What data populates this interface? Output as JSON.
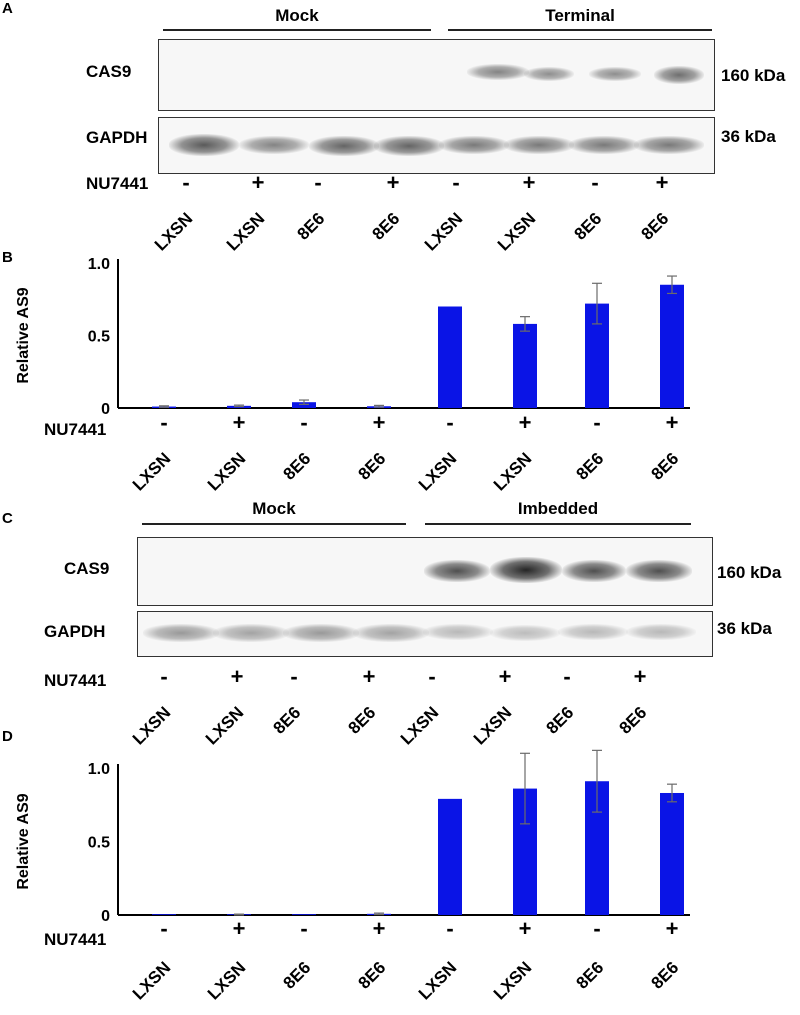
{
  "panels": {
    "a": {
      "letter": "A",
      "group1": "Mock",
      "group2": "Terminal",
      "top_protein": "CAS9",
      "bottom_protein": "GAPDH",
      "top_kda": "160 kDa",
      "bottom_kda": "36 kDa"
    },
    "b": {
      "letter": "B"
    },
    "c": {
      "letter": "C",
      "group1": "Mock",
      "group2": "Imbedded",
      "top_protein": "CAS9",
      "bottom_protein": "GAPDH",
      "top_kda": "160 kDa",
      "bottom_kda": "36 kDa"
    },
    "d": {
      "letter": "D"
    }
  },
  "treatment_label": "NU7441",
  "lanes": [
    {
      "name": "LXSN",
      "nu7441": "-"
    },
    {
      "name": "LXSN",
      "nu7441": "+"
    },
    {
      "name": "8E6",
      "nu7441": "-"
    },
    {
      "name": "8E6",
      "nu7441": "+"
    },
    {
      "name": "LXSN",
      "nu7441": "-"
    },
    {
      "name": "LXSN",
      "nu7441": "+"
    },
    {
      "name": "8E6",
      "nu7441": "-"
    },
    {
      "name": "8E6",
      "nu7441": "+"
    }
  ],
  "colors": {
    "bar": "#0a14e6",
    "error": "#6b6b6b",
    "axis": "#000000"
  },
  "chart_data": [
    {
      "type": "bar",
      "panel": "B",
      "title": "",
      "xlabel": "",
      "ylabel": "Relative AS9",
      "ylim": [
        0,
        1.0
      ],
      "yticks": [
        0,
        0.5,
        1.0
      ],
      "ytick_labels": [
        "0",
        "0.5",
        "1.0"
      ],
      "categories": [
        "LXSN",
        "LXSN",
        "8E6",
        "8E6",
        "LXSN",
        "LXSN",
        "8E6",
        "8E6"
      ],
      "values": [
        0.01,
        0.015,
        0.04,
        0.012,
        0.7,
        0.58,
        0.72,
        0.85
      ],
      "errors": [
        0.005,
        0.005,
        0.015,
        0.006,
        0.0,
        0.05,
        0.14,
        0.06
      ]
    },
    {
      "type": "bar",
      "panel": "D",
      "title": "",
      "xlabel": "",
      "ylabel": "Relative AS9",
      "ylim": [
        0,
        1.0
      ],
      "yticks": [
        0,
        0.5,
        1.0
      ],
      "ytick_labels": [
        "0",
        "0.5",
        "1.0"
      ],
      "categories": [
        "LXSN",
        "LXSN",
        "8E6",
        "8E6",
        "LXSN",
        "LXSN",
        "8E6",
        "8E6"
      ],
      "values": [
        0.0,
        0.003,
        0.0,
        0.008,
        0.79,
        0.86,
        0.91,
        0.83
      ],
      "errors": [
        0.0,
        0.003,
        0.0,
        0.005,
        0.0,
        0.24,
        0.21,
        0.06
      ]
    }
  ]
}
